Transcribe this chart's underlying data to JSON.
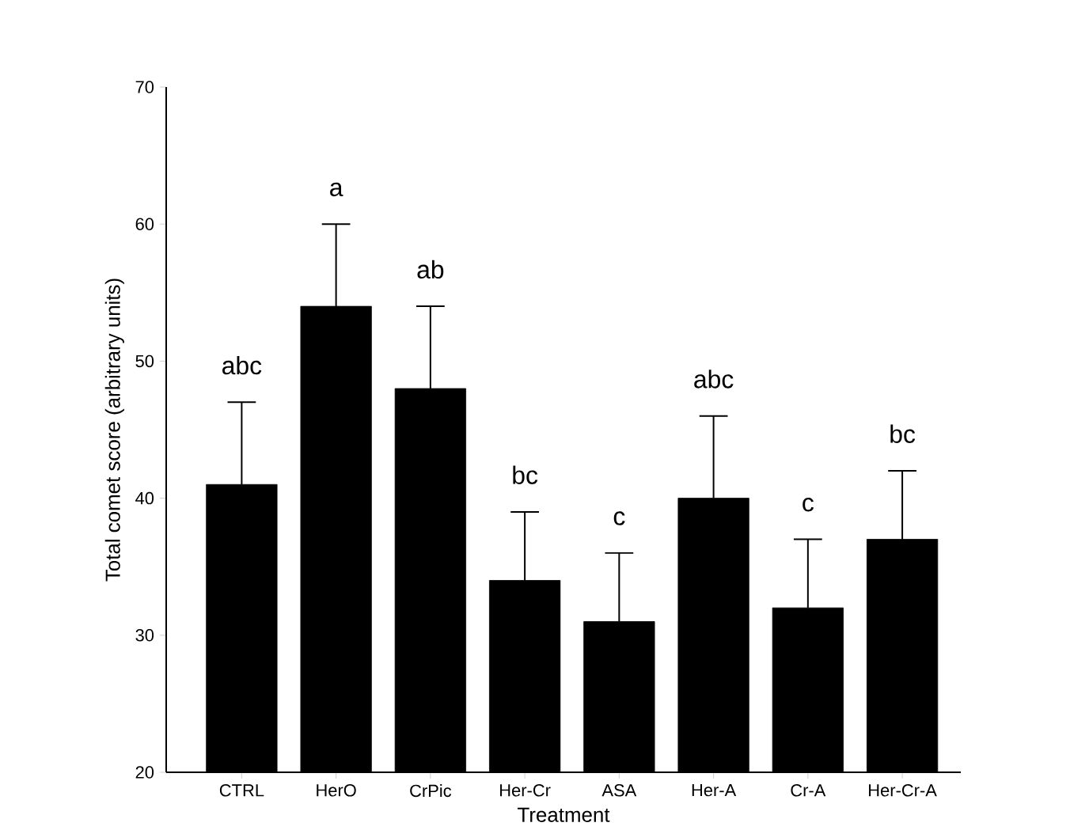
{
  "chart_data": {
    "type": "bar",
    "xlabel": "Treatment",
    "ylabel": "Total comet score (arbitrary units)",
    "categories": [
      "CTRL",
      "HerO",
      "CrPic",
      "Her-Cr",
      "ASA",
      "Her-A",
      "Cr-A",
      "Her-Cr-A"
    ],
    "values": [
      41,
      54,
      48,
      34,
      31,
      40,
      32,
      37
    ],
    "errors": [
      [
        41,
        47
      ],
      [
        54,
        60
      ],
      [
        48,
        54
      ],
      [
        34,
        39
      ],
      [
        31,
        36
      ],
      [
        40,
        46
      ],
      [
        32,
        37
      ],
      [
        37,
        42
      ]
    ],
    "color": "#000000",
    "ylim": [
      20,
      70
    ],
    "yticks": [
      20,
      30,
      40,
      50,
      60,
      70
    ],
    "annotations": [
      "abc",
      "a",
      "ab",
      "bc",
      "c",
      "abc",
      "c",
      "bc"
    ]
  }
}
